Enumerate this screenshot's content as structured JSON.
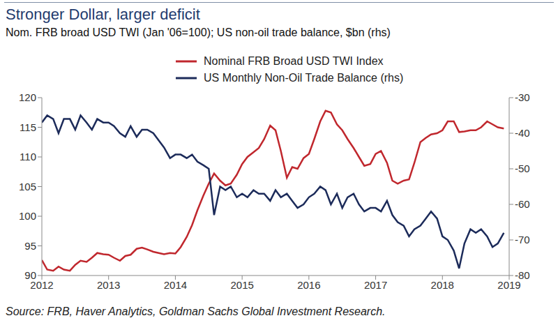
{
  "chart_data": {
    "type": "line",
    "title": "Stronger Dollar, larger deficit",
    "subtitle": "Nom. FRB broad USD TWI (Jan '06=100); US non-oil trade balance, $bn (rhs)",
    "source": "Source: FRB, Haver Analytics, Goldman Sachs Global Investment Research.",
    "x": [
      2012,
      2012.08,
      2012.17,
      2012.25,
      2012.33,
      2012.42,
      2012.5,
      2012.58,
      2012.67,
      2012.75,
      2012.83,
      2012.92,
      2013,
      2013.08,
      2013.17,
      2013.25,
      2013.33,
      2013.42,
      2013.5,
      2013.58,
      2013.67,
      2013.75,
      2013.83,
      2013.92,
      2014,
      2014.08,
      2014.17,
      2014.25,
      2014.33,
      2014.42,
      2014.5,
      2014.58,
      2014.67,
      2014.75,
      2014.83,
      2014.92,
      2015,
      2015.08,
      2015.17,
      2015.25,
      2015.33,
      2015.42,
      2015.5,
      2015.58,
      2015.67,
      2015.75,
      2015.83,
      2015.92,
      2016,
      2016.08,
      2016.17,
      2016.25,
      2016.33,
      2016.42,
      2016.5,
      2016.58,
      2016.67,
      2016.75,
      2016.83,
      2016.92,
      2017,
      2017.08,
      2017.17,
      2017.25,
      2017.33,
      2017.42,
      2017.5,
      2017.58,
      2017.67,
      2017.75,
      2017.83,
      2017.92,
      2018,
      2018.08,
      2018.17,
      2018.25,
      2018.33,
      2018.42,
      2018.5,
      2018.58,
      2018.67,
      2018.75,
      2018.83,
      2018.92
    ],
    "series": [
      {
        "name": "Nominal FRB Broad USD TWI Index",
        "color": "#c0272d",
        "axis": "y",
        "values": [
          92.6,
          91.0,
          90.8,
          91.5,
          91.0,
          90.8,
          91.8,
          92.5,
          92.3,
          93.0,
          93.8,
          93.6,
          93.5,
          93.0,
          92.5,
          93.3,
          93.5,
          94.5,
          94.7,
          94.4,
          94.0,
          93.8,
          93.6,
          93.8,
          93.7,
          94.8,
          96.5,
          98.5,
          101.0,
          103.5,
          105.5,
          107.2,
          106.0,
          105.2,
          105.5,
          107.0,
          108.8,
          110.0,
          110.8,
          111.5,
          113.0,
          115.3,
          114.5,
          111.0,
          106.5,
          108.3,
          108.0,
          109.8,
          110.5,
          113.0,
          116.0,
          117.8,
          117.5,
          115.5,
          114.5,
          113.0,
          111.5,
          110.0,
          108.5,
          108.8,
          110.5,
          111.0,
          109.0,
          106.0,
          105.5,
          106.0,
          106.2,
          109.0,
          112.5,
          113.2,
          113.8,
          114.0,
          114.5,
          116.0,
          116.0,
          114.2,
          114.3,
          114.5,
          114.5,
          115.0,
          116.0,
          115.5,
          115.0,
          114.8
        ]
      },
      {
        "name": "US Monthly Non-Oil Trade Balance (rhs)",
        "color": "#1c2b5a",
        "axis": "y2",
        "values": [
          -37,
          -35,
          -36,
          -40,
          -36,
          -36,
          -39,
          -35,
          -37,
          -39,
          -36,
          -37,
          -37,
          -38,
          -40,
          -41,
          -38,
          -41,
          -39,
          -39,
          -40,
          -42,
          -44,
          -47,
          -46,
          -46,
          -47,
          -46,
          -48,
          -49,
          -50,
          -63,
          -55,
          -56,
          -55,
          -58,
          -57,
          -58,
          -56,
          -57,
          -57,
          -59,
          -56,
          -58,
          -57,
          -59,
          -61,
          -60,
          -58,
          -57,
          -55,
          -56,
          -60,
          -57,
          -61,
          -58,
          -57,
          -60,
          -62,
          -61,
          -61,
          -62,
          -59,
          -63,
          -65,
          -66,
          -69,
          -67,
          -66,
          -64,
          -62,
          -64,
          -69,
          -70,
          -73,
          -78,
          -71,
          -67,
          -68,
          -67,
          -69,
          -72,
          -71,
          -68
        ]
      }
    ],
    "xlim": [
      2012,
      2019
    ],
    "xticks": [
      2012,
      2013,
      2014,
      2015,
      2016,
      2017,
      2018,
      2019
    ],
    "ylim": [
      90,
      120
    ],
    "yticks": [
      90,
      95,
      100,
      105,
      110,
      115,
      120
    ],
    "y2lim": [
      -80,
      -30
    ],
    "y2ticks": [
      -80,
      -70,
      -60,
      -50,
      -40,
      -30
    ],
    "grid": false,
    "legend": "top"
  }
}
